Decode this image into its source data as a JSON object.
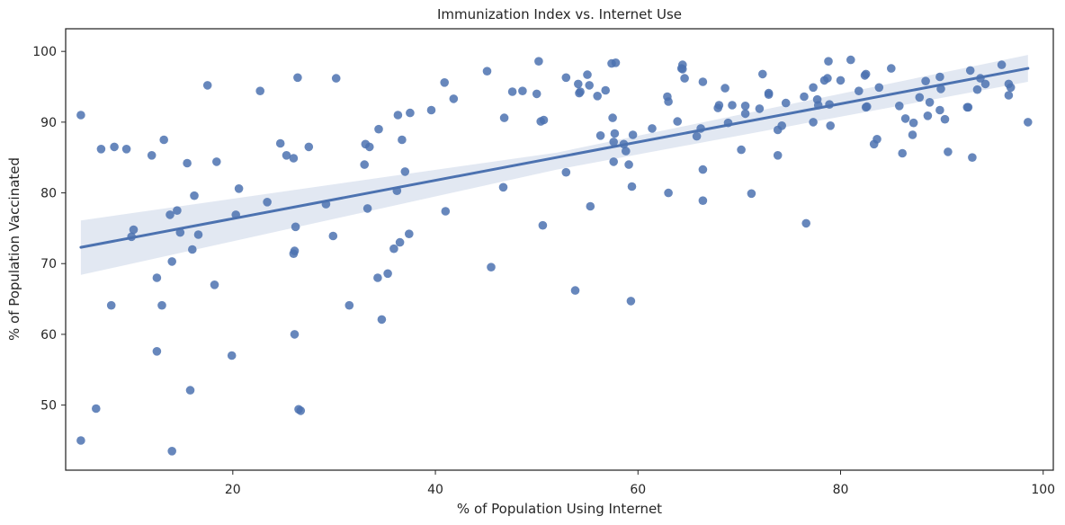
{
  "chart_data": {
    "type": "scatter",
    "title": "Immunization Index vs. Internet Use",
    "xlabel": "% of Population Using Internet",
    "ylabel": "% of Population Vaccinated",
    "xlim": [
      3.5,
      101
    ],
    "ylim": [
      40.8,
      103.2
    ],
    "xticks": [
      20,
      40,
      60,
      80,
      100
    ],
    "yticks": [
      50,
      60,
      70,
      80,
      90,
      100
    ],
    "grid": false,
    "legend": "none",
    "colors": {
      "points": "#4c72b0",
      "line": "#4c72b0",
      "band": "#4c72b0"
    },
    "regression": {
      "x": [
        5,
        98.5
      ],
      "y": [
        72.3,
        97.6
      ],
      "ci_low": [
        68.4,
        95.7
      ],
      "ci_high": [
        76.1,
        99.5
      ],
      "ci_mid_x": 52,
      "ci_mid_low": 83.3,
      "ci_mid_high": 85.7
    },
    "points": [
      [
        5,
        91
      ],
      [
        5,
        45
      ],
      [
        6.5,
        49.5
      ],
      [
        7,
        86.2
      ],
      [
        8,
        64.1
      ],
      [
        8.3,
        86.5
      ],
      [
        9.5,
        86.2
      ],
      [
        10,
        73.8
      ],
      [
        10.2,
        74.8
      ],
      [
        12,
        85.3
      ],
      [
        12.5,
        68
      ],
      [
        12.5,
        57.6
      ],
      [
        13,
        64.1
      ],
      [
        13.2,
        87.5
      ],
      [
        13.8,
        76.9
      ],
      [
        14,
        70.3
      ],
      [
        14,
        43.5
      ],
      [
        14.5,
        77.5
      ],
      [
        14.8,
        74.4
      ],
      [
        15.5,
        84.2
      ],
      [
        15.8,
        52.1
      ],
      [
        16,
        72
      ],
      [
        16.2,
        79.6
      ],
      [
        16.6,
        74.1
      ],
      [
        17.5,
        95.2
      ],
      [
        18.2,
        67
      ],
      [
        18.4,
        84.4
      ],
      [
        19.9,
        57
      ],
      [
        20.3,
        76.9
      ],
      [
        20.6,
        80.6
      ],
      [
        22.7,
        94.4
      ],
      [
        23.4,
        78.7
      ],
      [
        24.7,
        87
      ],
      [
        25.3,
        85.3
      ],
      [
        26,
        84.9
      ],
      [
        26,
        71.4
      ],
      [
        26.1,
        71.8
      ],
      [
        26.1,
        60
      ],
      [
        26.2,
        75.2
      ],
      [
        26.4,
        96.3
      ],
      [
        26.5,
        49.4
      ],
      [
        26.7,
        49.2
      ],
      [
        27.5,
        86.5
      ],
      [
        29.2,
        78.4
      ],
      [
        29.9,
        73.9
      ],
      [
        30.2,
        96.2
      ],
      [
        31.5,
        64.1
      ],
      [
        33,
        84
      ],
      [
        33.1,
        86.9
      ],
      [
        33.3,
        77.8
      ],
      [
        33.5,
        86.5
      ],
      [
        34.3,
        68
      ],
      [
        34.4,
        89
      ],
      [
        34.7,
        62.1
      ],
      [
        35.3,
        68.6
      ],
      [
        35.9,
        72.1
      ],
      [
        36.2,
        80.3
      ],
      [
        36.3,
        91
      ],
      [
        36.5,
        73
      ],
      [
        36.7,
        87.5
      ],
      [
        37,
        83
      ],
      [
        37.4,
        74.2
      ],
      [
        37.5,
        91.3
      ],
      [
        39.6,
        91.7
      ],
      [
        40.9,
        95.6
      ],
      [
        41,
        77.4
      ],
      [
        41.8,
        93.3
      ],
      [
        45.1,
        97.2
      ],
      [
        45.5,
        69.5
      ],
      [
        46.7,
        80.8
      ],
      [
        46.8,
        90.6
      ],
      [
        47.6,
        94.3
      ],
      [
        48.6,
        94.4
      ],
      [
        50,
        94
      ],
      [
        50.2,
        98.6
      ],
      [
        50.4,
        90.1
      ],
      [
        50.6,
        75.4
      ],
      [
        50.7,
        90.3
      ],
      [
        52.9,
        96.3
      ],
      [
        52.9,
        82.9
      ],
      [
        53.8,
        66.2
      ],
      [
        54.1,
        95.4
      ],
      [
        54.2,
        94.1
      ],
      [
        54.3,
        94.3
      ],
      [
        55,
        96.7
      ],
      [
        55.2,
        95.2
      ],
      [
        55.3,
        78.1
      ],
      [
        56,
        93.7
      ],
      [
        56.3,
        88.1
      ],
      [
        56.8,
        94.5
      ],
      [
        57.4,
        98.3
      ],
      [
        57.5,
        90.6
      ],
      [
        57.6,
        84.4
      ],
      [
        57.6,
        87.2
      ],
      [
        57.7,
        88.4
      ],
      [
        57.8,
        98.4
      ],
      [
        58.6,
        86.9
      ],
      [
        58.8,
        85.9
      ],
      [
        59.1,
        84
      ],
      [
        59.3,
        64.7
      ],
      [
        59.4,
        80.9
      ],
      [
        59.5,
        88.2
      ],
      [
        61.4,
        89.1
      ],
      [
        62.9,
        93.6
      ],
      [
        63,
        92.9
      ],
      [
        63,
        80
      ],
      [
        63.9,
        90.1
      ],
      [
        64.3,
        97.6
      ],
      [
        64.4,
        98.1
      ],
      [
        64.4,
        97.5
      ],
      [
        64.6,
        96.2
      ],
      [
        65.8,
        88
      ],
      [
        66.2,
        89.1
      ],
      [
        66.4,
        95.7
      ],
      [
        66.4,
        83.3
      ],
      [
        66.4,
        78.9
      ],
      [
        67.9,
        92
      ],
      [
        68,
        92.4
      ],
      [
        68.6,
        94.8
      ],
      [
        68.9,
        89.9
      ],
      [
        69.3,
        92.4
      ],
      [
        70.2,
        86.1
      ],
      [
        70.6,
        91.2
      ],
      [
        70.6,
        92.3
      ],
      [
        71.2,
        79.9
      ],
      [
        72,
        91.9
      ],
      [
        72.3,
        96.8
      ],
      [
        72.9,
        94.1
      ],
      [
        72.9,
        93.9
      ],
      [
        73.8,
        88.9
      ],
      [
        73.8,
        85.3
      ],
      [
        74.2,
        89.5
      ],
      [
        74.6,
        92.7
      ],
      [
        76.4,
        93.6
      ],
      [
        76.6,
        75.7
      ],
      [
        77.3,
        94.9
      ],
      [
        77.3,
        90
      ],
      [
        77.7,
        93.2
      ],
      [
        77.8,
        92.4
      ],
      [
        78.4,
        95.9
      ],
      [
        78.7,
        96.2
      ],
      [
        78.8,
        98.6
      ],
      [
        78.9,
        92.5
      ],
      [
        79,
        89.5
      ],
      [
        80,
        95.9
      ],
      [
        81,
        98.8
      ],
      [
        81.8,
        94.4
      ],
      [
        82.4,
        96.6
      ],
      [
        82.5,
        96.8
      ],
      [
        82.5,
        92.1
      ],
      [
        82.6,
        92.2
      ],
      [
        83.3,
        86.9
      ],
      [
        83.6,
        87.6
      ],
      [
        83.8,
        94.9
      ],
      [
        85,
        97.6
      ],
      [
        85.8,
        92.3
      ],
      [
        86.1,
        85.6
      ],
      [
        86.4,
        90.5
      ],
      [
        87.1,
        88.2
      ],
      [
        87.2,
        89.9
      ],
      [
        87.8,
        93.5
      ],
      [
        88.4,
        95.8
      ],
      [
        88.6,
        90.9
      ],
      [
        88.8,
        92.8
      ],
      [
        89.8,
        96.4
      ],
      [
        89.8,
        91.7
      ],
      [
        89.9,
        94.7
      ],
      [
        90.3,
        90.4
      ],
      [
        90.6,
        85.8
      ],
      [
        92.5,
        92.1
      ],
      [
        92.6,
        92.1
      ],
      [
        92.8,
        97.3
      ],
      [
        93,
        85
      ],
      [
        93.5,
        94.6
      ],
      [
        93.8,
        96.2
      ],
      [
        94.3,
        95.4
      ],
      [
        95.9,
        98.1
      ],
      [
        96.6,
        95.4
      ],
      [
        96.6,
        93.8
      ],
      [
        96.8,
        94.9
      ],
      [
        98.5,
        90
      ]
    ]
  }
}
